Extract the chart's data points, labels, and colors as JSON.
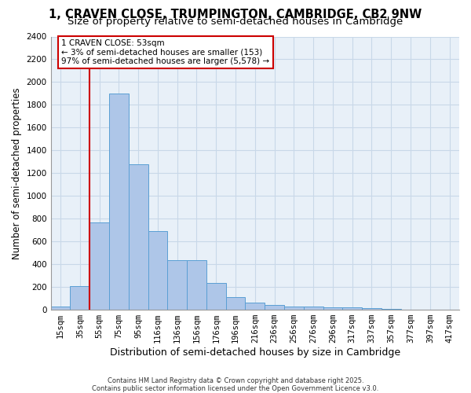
{
  "title": "1, CRAVEN CLOSE, TRUMPINGTON, CAMBRIDGE, CB2 9NW",
  "subtitle": "Size of property relative to semi-detached houses in Cambridge",
  "xlabel": "Distribution of semi-detached houses by size in Cambridge",
  "ylabel": "Number of semi-detached properties",
  "footer_line1": "Contains HM Land Registry data © Crown copyright and database right 2025.",
  "footer_line2": "Contains public sector information licensed under the Open Government Licence v3.0.",
  "categories": [
    "15sqm",
    "35sqm",
    "55sqm",
    "75sqm",
    "95sqm",
    "116sqm",
    "136sqm",
    "156sqm",
    "176sqm",
    "196sqm",
    "216sqm",
    "236sqm",
    "256sqm",
    "276sqm",
    "296sqm",
    "317sqm",
    "337sqm",
    "357sqm",
    "377sqm",
    "397sqm",
    "417sqm"
  ],
  "values": [
    25,
    205,
    770,
    1900,
    1280,
    690,
    435,
    435,
    235,
    110,
    60,
    40,
    30,
    25,
    22,
    18,
    12,
    8,
    4,
    2,
    1
  ],
  "bar_color": "#aec6e8",
  "bar_edge_color": "#5a9fd4",
  "vline_x": 1.5,
  "vline_color": "#cc0000",
  "annotation_text": "1 CRAVEN CLOSE: 53sqm\n← 3% of semi-detached houses are smaller (153)\n97% of semi-detached houses are larger (5,578) →",
  "annotation_box_color": "#cc0000",
  "ylim": [
    0,
    2400
  ],
  "yticks": [
    0,
    200,
    400,
    600,
    800,
    1000,
    1200,
    1400,
    1600,
    1800,
    2000,
    2200,
    2400
  ],
  "grid_color": "#c8d8e8",
  "background_color": "#e8f0f8",
  "title_fontsize": 10.5,
  "subtitle_fontsize": 9.5,
  "xlabel_fontsize": 9,
  "ylabel_fontsize": 8.5,
  "tick_fontsize": 7.5,
  "annot_fontsize": 7.5,
  "footer_fontsize": 6.0
}
